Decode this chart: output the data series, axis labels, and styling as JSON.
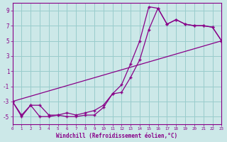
{
  "xlabel": "Windchill (Refroidissement éolien,°C)",
  "background_color": "#cce8e8",
  "grid_color": "#99cccc",
  "line_color": "#880088",
  "xlim": [
    0,
    23
  ],
  "ylim": [
    -6,
    10
  ],
  "xticks": [
    0,
    1,
    2,
    3,
    4,
    5,
    6,
    7,
    8,
    9,
    10,
    11,
    12,
    13,
    14,
    15,
    16,
    17,
    18,
    19,
    20,
    21,
    22,
    23
  ],
  "yticks": [
    -5,
    -3,
    -1,
    1,
    3,
    5,
    7,
    9
  ],
  "line1_x": [
    0,
    1,
    2,
    3,
    4,
    5,
    6,
    7,
    8,
    9,
    10,
    11,
    12,
    13,
    14,
    15,
    16,
    17,
    18,
    19,
    20,
    21,
    22,
    23
  ],
  "line1_y": [
    -3,
    -5,
    -3.5,
    -5,
    -5,
    -4.8,
    -5,
    -5,
    -4.8,
    -4.8,
    -3.8,
    -2,
    -0.8,
    2,
    5,
    9.5,
    9.3,
    7.2,
    7.8,
    7.2,
    7.0,
    7.0,
    6.8,
    5.0
  ],
  "line2_x": [
    0,
    1,
    2,
    3,
    4,
    5,
    6,
    7,
    8,
    9,
    10,
    11,
    12,
    13,
    14,
    15,
    16,
    17,
    18,
    19,
    20,
    21,
    22,
    23
  ],
  "line2_y": [
    -3,
    -4.8,
    -3.5,
    -3.5,
    -4.8,
    -4.8,
    -4.5,
    -4.8,
    -4.5,
    -4.2,
    -3.5,
    -2.0,
    -1.8,
    0.2,
    2.5,
    6.5,
    9.3,
    7.2,
    7.8,
    7.2,
    7.0,
    7.0,
    6.8,
    5.0
  ],
  "line3_x": [
    0,
    23
  ],
  "line3_y": [
    -3,
    5
  ]
}
